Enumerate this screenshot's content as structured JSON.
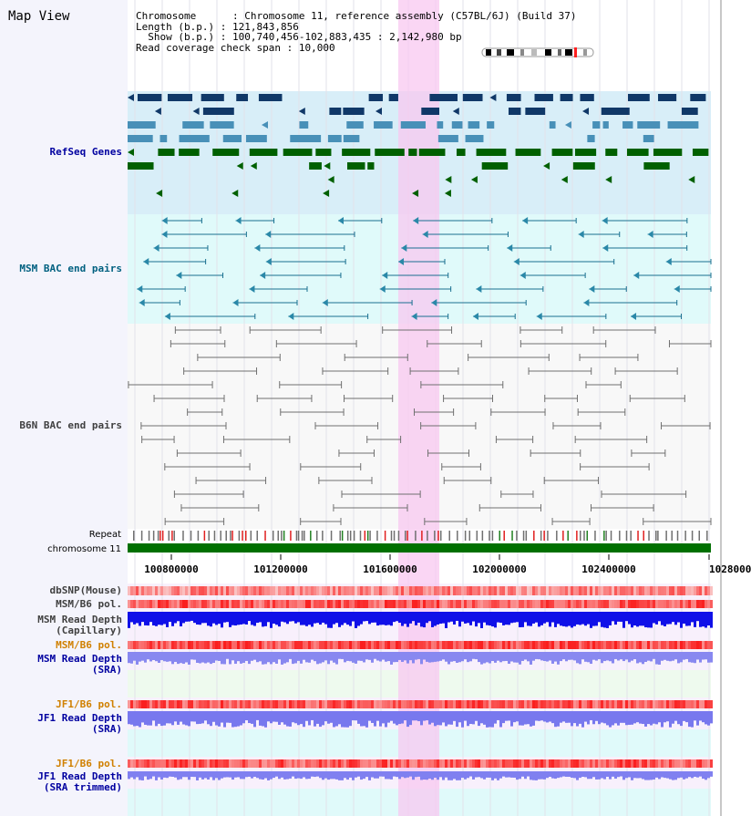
{
  "view_title": "Map View",
  "header": {
    "chromosome_label": "Chromosome",
    "chromosome_value": "Chromosome 11, reference assembly (C57BL/6J) (Build 37)",
    "length_label": "Length (b.p.)",
    "length_value": "121,843,856",
    "show_label": "Show (b.p.)",
    "show_value": "100,740,456-102,883,435 : 2,142,980 bp",
    "coverage_label": "Read coverage check span",
    "coverage_value": "10,000"
  },
  "tracks": {
    "refseq": "RefSeq Genes",
    "msm_bac": "MSM BAC end pairs",
    "b6n_bac": "B6N BAC end pairs",
    "repeat": "Repeat",
    "chromosome": "chromosome 11",
    "dbsnp": "dbSNP(Mouse)",
    "msm_b6_pol": "MSM/B6 pol.",
    "msm_depth_cap_1": "MSM Read Depth",
    "msm_depth_cap_2": "(Capillary)",
    "msm_b6_pol_2": "MSM/B6 pol.",
    "msm_depth_sra_1": "MSM Read Depth",
    "msm_depth_sra_2": "(SRA)",
    "jf1_b6_pol": "JF1/B6 pol.",
    "jf1_depth_sra_1": "JF1 Read Depth",
    "jf1_depth_sra_2": "(SRA)",
    "jf1_b6_pol_2": "JF1/B6 pol.",
    "jf1_depth_trim_1": "JF1 Read Depth",
    "jf1_depth_trim_2": "(SRA trimmed)"
  },
  "axis_ticks": [
    "100800000",
    "101200000",
    "101600000",
    "102000000",
    "102400000",
    "1028000"
  ],
  "colors": {
    "label_blue": "#0000a0",
    "label_teal": "#006080",
    "label_orange": "#d08000",
    "refseq_dark": "#103868",
    "refseq_mid": "#4890b8",
    "refseq_green": "#006000",
    "highlight": "#f8c8f0"
  }
}
